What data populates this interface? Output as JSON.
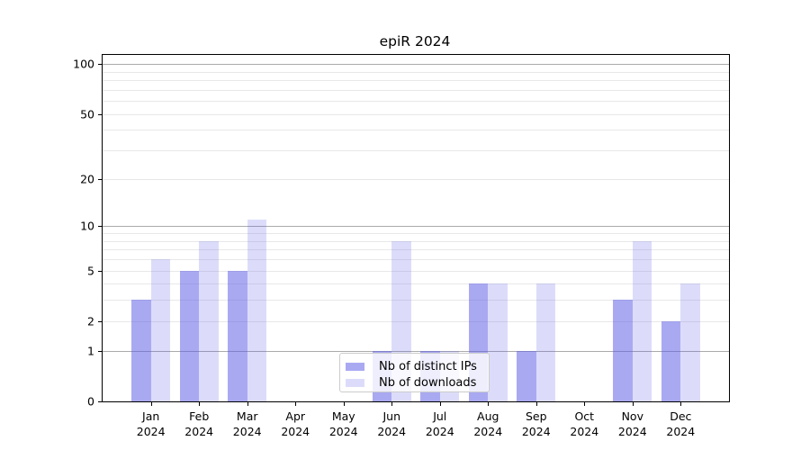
{
  "title": "epiR 2024",
  "legend": {
    "items": [
      {
        "label": "Nb of distinct IPs",
        "color": "rgba(90,90,230,0.52)"
      },
      {
        "label": "Nb of downloads",
        "color": "rgba(90,90,230,0.21)"
      }
    ]
  },
  "chart_data": {
    "type": "bar",
    "title": "epiR 2024",
    "xlabel": "",
    "ylabel": "",
    "year_label": "2024",
    "categories": [
      "Jan",
      "Feb",
      "Mar",
      "Apr",
      "May",
      "Jun",
      "Jul",
      "Aug",
      "Sep",
      "Oct",
      "Nov",
      "Dec"
    ],
    "series": [
      {
        "name": "Nb of distinct IPs",
        "color": "rgba(90,90,230,0.52)",
        "values": [
          3,
          5,
          5,
          0,
          0,
          1,
          1,
          4,
          1,
          0,
          3,
          2
        ]
      },
      {
        "name": "Nb of downloads",
        "color": "rgba(90,90,230,0.21)",
        "values": [
          6,
          8,
          11,
          0,
          0,
          8,
          1,
          4,
          4,
          0,
          8,
          4
        ]
      }
    ],
    "yscale": "log1p",
    "yticks": [
      0,
      1,
      2,
      5,
      10,
      20,
      50,
      100
    ],
    "major_gridlines": [
      1,
      10,
      100
    ],
    "minor_gridlines": [
      2,
      3,
      4,
      5,
      6,
      7,
      8,
      9,
      20,
      30,
      40,
      50,
      60,
      70,
      80,
      90
    ],
    "ylim": [
      0,
      113
    ],
    "grid": true,
    "legend_position": "bottom-center"
  }
}
